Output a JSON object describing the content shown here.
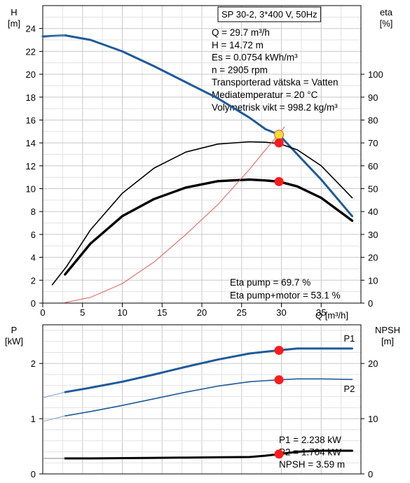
{
  "chart_data": [
    {
      "type": "line",
      "title": "SP 30-2, 3*400 V, 50Hz",
      "xlabel": "Q [m³/h]",
      "ylabel_left": [
        "H",
        "[m]"
      ],
      "ylabel_right": [
        "eta",
        "[%]"
      ],
      "xlim": [
        0,
        40
      ],
      "ylim_left": [
        0,
        26
      ],
      "ylim_right": [
        0,
        130
      ],
      "x_ticks": [
        0,
        5,
        10,
        15,
        20,
        25,
        30,
        35
      ],
      "y_left_ticks": [
        0,
        2,
        4,
        6,
        8,
        10,
        12,
        14,
        16,
        18,
        20,
        22,
        24
      ],
      "y_right_ticks": [
        0,
        10,
        20,
        30,
        40,
        50,
        60,
        70,
        80,
        90,
        100
      ],
      "grid": true,
      "info_lines": [
        "Q = 29.7 m³/h",
        "H = 14.72 m",
        "Es = 0.0754 kWh/m³",
        "n = 2905 rpm",
        "Transporterad vätska = Vatten",
        "Mediatemperatur = 20 °C",
        "Volymetrisk vikt = 998.2 kg/m³"
      ],
      "eta_lines": [
        "Eta pump = 69.7 %",
        "Eta pump+motor = 53.1 %"
      ],
      "series": [
        {
          "axis": "left",
          "color": "#1f5a99",
          "x": [
            0,
            2.8,
            6,
            10,
            14,
            18,
            22,
            26,
            28,
            29.7,
            32,
            35,
            38.9
          ],
          "y": [
            23.3,
            23.4,
            23.0,
            22.0,
            20.7,
            19.3,
            17.9,
            16.2,
            15.2,
            14.72,
            13.0,
            10.8,
            7.6
          ]
        },
        {
          "axis": "right",
          "color": "#000000",
          "x": [
            1.2,
            3,
            6,
            10,
            14,
            18,
            22,
            26,
            28,
            29.7,
            32,
            35,
            38.9
          ],
          "y": [
            8,
            16,
            32,
            48,
            59,
            66,
            69.5,
            70.5,
            70.3,
            69.7,
            67,
            60,
            46
          ]
        },
        {
          "axis": "right",
          "color": "#000000",
          "x": [
            2.8,
            6,
            10,
            14,
            18,
            22,
            26,
            28,
            29.7,
            32,
            35,
            38.9
          ],
          "y": [
            12.5,
            26,
            38,
            45.5,
            50.5,
            53.3,
            54,
            53.6,
            53.1,
            51,
            46,
            36
          ]
        },
        {
          "axis": "left",
          "color": "#e35b50",
          "x": [
            2.8,
            6,
            10,
            14,
            18,
            22,
            26,
            28,
            29.7,
            30.4
          ],
          "y": [
            0.05,
            0.5,
            1.7,
            3.6,
            6.0,
            8.6,
            11.7,
            13.4,
            14.8,
            15.4
          ]
        }
      ],
      "operating_points": [
        {
          "x": 29.7,
          "y": 14.72,
          "axis": "left",
          "color": "#f0e030"
        },
        {
          "x": 29.7,
          "y": 14.0,
          "axis": "left",
          "color": "#ff1a1a"
        },
        {
          "x": 29.7,
          "y": 53.1,
          "axis": "right",
          "color": "#ff1a1a"
        }
      ]
    },
    {
      "type": "line",
      "ylabel_left": [
        "P",
        "[kW]"
      ],
      "ylabel_right": [
        "NPSH",
        "[m]"
      ],
      "xlim": [
        0,
        40
      ],
      "ylim_left": [
        0,
        2.7
      ],
      "ylim_right": [
        0,
        27
      ],
      "y_left_ticks": [
        0,
        1,
        2
      ],
      "y_right_ticks": [
        0,
        10,
        20
      ],
      "grid": true,
      "info_lines": [
        "P1 = 2.238 kW",
        "P2 = 1.704 kW",
        "NPSH = 3.59 m"
      ],
      "series": [
        {
          "name": "P1",
          "axis": "left",
          "color": "#1f5a99",
          "x": [
            2.8,
            6,
            10,
            14,
            18,
            22,
            26,
            29.7,
            32,
            35,
            38.9
          ],
          "y": [
            1.48,
            1.56,
            1.67,
            1.8,
            1.94,
            2.07,
            2.18,
            2.238,
            2.27,
            2.27,
            2.27
          ]
        },
        {
          "name": "P2",
          "axis": "left",
          "color": "#1f5a99",
          "x": [
            2.8,
            6,
            10,
            14,
            18,
            22,
            26,
            29.7,
            32,
            35,
            38.9
          ],
          "y": [
            1.05,
            1.13,
            1.24,
            1.36,
            1.48,
            1.59,
            1.67,
            1.704,
            1.72,
            1.72,
            1.71
          ]
        },
        {
          "axis": "right",
          "color": "#000000",
          "x": [
            2.8,
            6,
            10,
            14,
            18,
            22,
            26,
            28,
            29.7,
            32,
            35,
            38.9
          ],
          "y": [
            2.8,
            2.8,
            2.85,
            2.9,
            2.95,
            3.0,
            3.05,
            3.3,
            3.59,
            4.0,
            4.2,
            4.2
          ]
        }
      ],
      "operating_points": [
        {
          "x": 29.7,
          "y": 2.238,
          "axis": "left",
          "color": "#ff1a1a"
        },
        {
          "x": 29.7,
          "y": 1.704,
          "axis": "left",
          "color": "#ff1a1a"
        },
        {
          "x": 29.7,
          "y": 3.59,
          "axis": "right",
          "color": "#ff1a1a"
        }
      ]
    }
  ]
}
